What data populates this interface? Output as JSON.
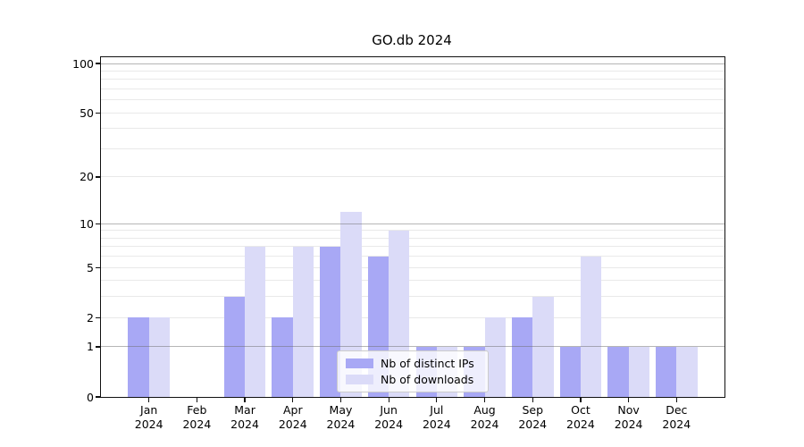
{
  "chart_data": {
    "type": "bar",
    "title": "GO.db 2024",
    "x": {
      "months": [
        "Jan",
        "Feb",
        "Mar",
        "Apr",
        "May",
        "Jun",
        "Jul",
        "Aug",
        "Sep",
        "Oct",
        "Nov",
        "Dec"
      ],
      "year": "2024"
    },
    "series": [
      {
        "name": "Nb of distinct IPs",
        "color": "#a8a8f5",
        "values": [
          2,
          0,
          3,
          2,
          7,
          6,
          1,
          1,
          2,
          1,
          1,
          1
        ]
      },
      {
        "name": "Nb of downloads",
        "color": "#dbdbf8",
        "values": [
          2,
          0,
          7,
          7,
          12,
          9,
          1,
          2,
          3,
          6,
          1,
          1
        ]
      }
    ],
    "y_axis": {
      "scale": "log1p",
      "max": 100,
      "ticks": [
        0,
        1,
        2,
        5,
        10,
        20,
        50,
        100
      ],
      "major_gridlines": [
        1,
        10,
        100
      ],
      "minor_gridlines": [
        2,
        3,
        4,
        5,
        6,
        7,
        8,
        9,
        20,
        30,
        40,
        50,
        60,
        70,
        80,
        90
      ]
    },
    "legend_position": "lower center",
    "grid": true
  },
  "colors": {
    "minor_grid": "#e9e9e9",
    "major_grid": "rgba(110,110,110,0.5)",
    "spine": "#111111",
    "legend_bg": "rgba(255,255,255,0.8)",
    "legend_border": "#cccccc",
    "text": "#000000"
  }
}
